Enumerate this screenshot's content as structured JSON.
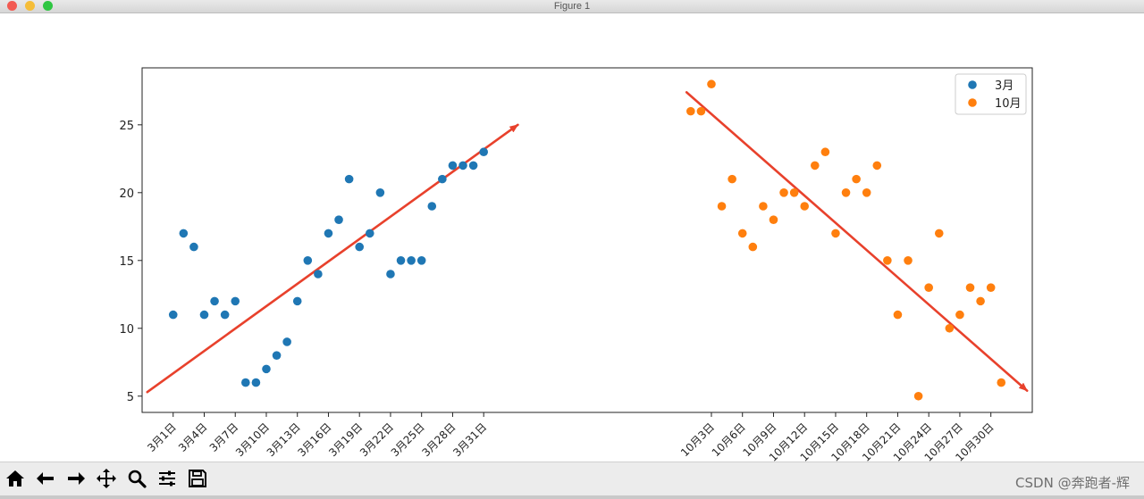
{
  "window": {
    "title": "Figure 1"
  },
  "toolbar": {
    "items": [
      "home",
      "back",
      "forward",
      "pan",
      "zoom",
      "configure-subplots",
      "save"
    ],
    "watermark": "CSDN @奔跑者-辉"
  },
  "chart_data": {
    "type": "scatter",
    "x_meaning": "day index; March days placed at 1-31, October days at 51-81",
    "xlim": [
      -2,
      84
    ],
    "ylim": [
      3.8,
      29.2
    ],
    "yticks": [
      5,
      10,
      15,
      20,
      25
    ],
    "xticks": [
      {
        "x": 1,
        "label": "3月1日"
      },
      {
        "x": 4,
        "label": "3月4日"
      },
      {
        "x": 7,
        "label": "3月7日"
      },
      {
        "x": 10,
        "label": "3月10日"
      },
      {
        "x": 13,
        "label": "3月13日"
      },
      {
        "x": 16,
        "label": "3月16日"
      },
      {
        "x": 19,
        "label": "3月19日"
      },
      {
        "x": 22,
        "label": "3月22日"
      },
      {
        "x": 25,
        "label": "3月25日"
      },
      {
        "x": 28,
        "label": "3月28日"
      },
      {
        "x": 31,
        "label": "3月31日"
      },
      {
        "x": 53,
        "label": "10月3日"
      },
      {
        "x": 56,
        "label": "10月6日"
      },
      {
        "x": 59,
        "label": "10月9日"
      },
      {
        "x": 62,
        "label": "10月12日"
      },
      {
        "x": 65,
        "label": "10月15日"
      },
      {
        "x": 68,
        "label": "10月18日"
      },
      {
        "x": 71,
        "label": "10月21日"
      },
      {
        "x": 74,
        "label": "10月24日"
      },
      {
        "x": 77,
        "label": "10月27日"
      },
      {
        "x": 80,
        "label": "10月30日"
      }
    ],
    "series": [
      {
        "name": "3月",
        "color": "#1f77b4",
        "x": [
          1,
          2,
          3,
          4,
          5,
          6,
          7,
          8,
          9,
          10,
          11,
          12,
          13,
          14,
          15,
          16,
          17,
          18,
          19,
          20,
          21,
          22,
          23,
          24,
          25,
          26,
          27,
          28,
          29,
          30,
          31
        ],
        "y": [
          11,
          17,
          16,
          11,
          12,
          11,
          12,
          6,
          6,
          7,
          8,
          9,
          12,
          15,
          14,
          17,
          18,
          21,
          16,
          17,
          20,
          14,
          15,
          15,
          15,
          19,
          21,
          22,
          22,
          22,
          23
        ]
      },
      {
        "name": "10月",
        "color": "#ff7f0e",
        "x": [
          51,
          52,
          53,
          54,
          55,
          56,
          57,
          58,
          59,
          60,
          61,
          62,
          63,
          64,
          65,
          66,
          67,
          68,
          69,
          70,
          71,
          72,
          73,
          74,
          75,
          76,
          77,
          78,
          79,
          80,
          81
        ],
        "y": [
          26,
          26,
          28,
          19,
          21,
          17,
          16,
          19,
          18,
          20,
          20,
          19,
          22,
          23,
          17,
          20,
          21,
          20,
          22,
          15,
          11,
          15,
          5,
          13,
          17,
          10,
          11,
          13,
          12,
          13,
          6
        ]
      }
    ],
    "annotations": [
      {
        "type": "arrow",
        "color": "#e8412c",
        "from": [
          -1.5,
          5.3
        ],
        "to": [
          34.3,
          25.0
        ]
      },
      {
        "type": "arrow",
        "color": "#e8412c",
        "from": [
          50.6,
          27.4
        ],
        "to": [
          83.5,
          5.4
        ]
      }
    ],
    "legend": {
      "position": "upper right",
      "entries": [
        "3月",
        "10月"
      ]
    }
  }
}
